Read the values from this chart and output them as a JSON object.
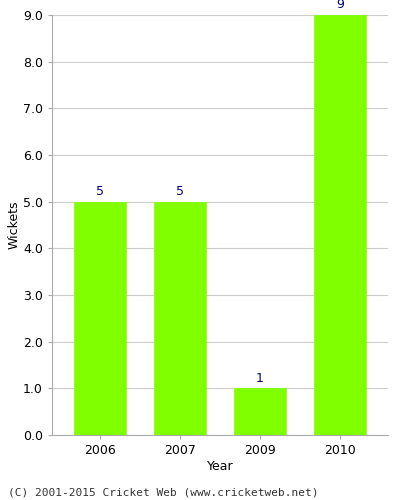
{
  "years": [
    "2006",
    "2007",
    "2009",
    "2010"
  ],
  "values": [
    5,
    5,
    1,
    9
  ],
  "bar_color": "#80ff00",
  "bar_edge_color": "#80ff00",
  "xlabel": "Year",
  "ylabel": "Wickets",
  "ylim": [
    0,
    9.0
  ],
  "yticks": [
    0.0,
    1.0,
    2.0,
    3.0,
    4.0,
    5.0,
    6.0,
    7.0,
    8.0,
    9.0
  ],
  "label_color": "#000080",
  "label_fontsize": 9,
  "axis_label_fontsize": 9,
  "tick_fontsize": 9,
  "footer_text": "(C) 2001-2015 Cricket Web (www.cricketweb.net)",
  "footer_fontsize": 8,
  "background_color": "#ffffff",
  "plot_bg_color": "#ffffff",
  "grid_color": "#cccccc",
  "bar_width": 0.65
}
